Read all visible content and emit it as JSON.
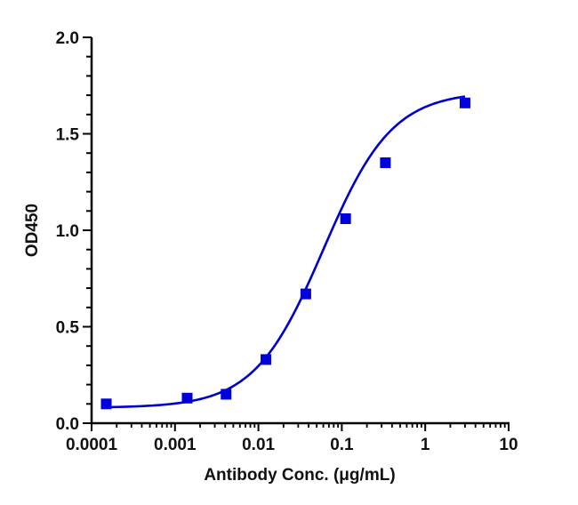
{
  "chart_data": {
    "type": "scatter",
    "title": "",
    "xlabel": "Antibody Conc. (μg/mL)",
    "ylabel": "OD450",
    "xscale": "log",
    "xlim": [
      0.0001,
      10
    ],
    "ylim": [
      0.0,
      2.0
    ],
    "x_ticks": [
      "0.0001",
      "0.001",
      "0.01",
      "0.1",
      "1",
      "10"
    ],
    "y_ticks": [
      "0.0",
      "0.5",
      "1.0",
      "1.5",
      "2.0"
    ],
    "grid": false,
    "legend": null,
    "series": [
      {
        "name": "OD450",
        "marker": "square",
        "color": "#0000dd",
        "fit": "4-parameter logistic curve",
        "x": [
          0.00015,
          0.0014,
          0.0041,
          0.0123,
          0.037,
          0.111,
          0.333,
          3.0
        ],
        "y": [
          0.1,
          0.13,
          0.15,
          0.33,
          0.67,
          1.06,
          1.35,
          1.66
        ]
      }
    ]
  },
  "colors": {
    "series": "#0000dd",
    "axis": "#000000"
  }
}
